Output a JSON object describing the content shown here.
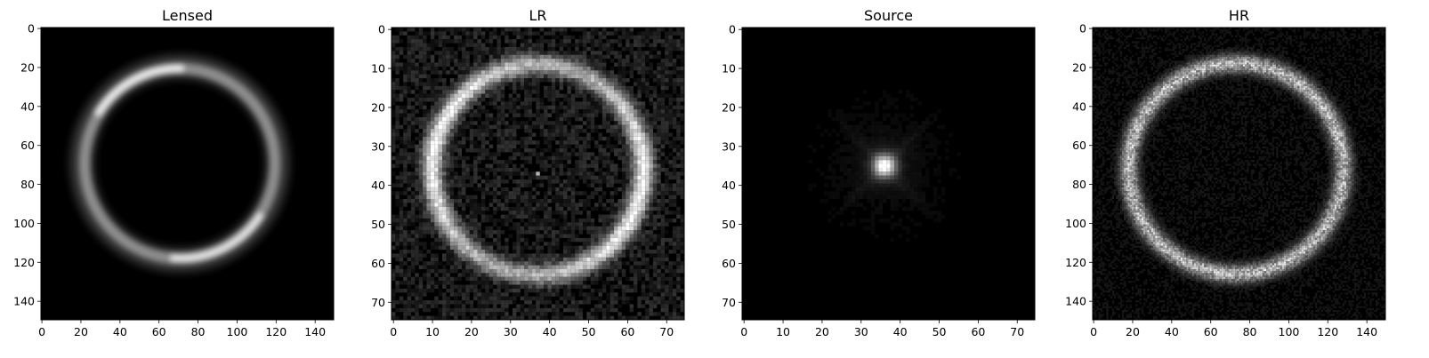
{
  "panels": [
    {
      "title": "Lensed",
      "xticks": [
        "0",
        "20",
        "40",
        "60",
        "80",
        "100",
        "120",
        "140"
      ],
      "yticks": [
        "0",
        "20",
        "40",
        "60",
        "80",
        "100",
        "120",
        "140"
      ],
      "range": [
        0,
        150
      ],
      "image": {
        "kind": "smooth-ring",
        "brightest_side": "upper-left and lower-right arcs"
      }
    },
    {
      "title": "LR",
      "xticks": [
        "0",
        "10",
        "20",
        "30",
        "40",
        "50",
        "60",
        "70"
      ],
      "yticks": [
        "0",
        "10",
        "20",
        "30",
        "40",
        "50",
        "60",
        "70"
      ],
      "range": [
        0,
        75
      ],
      "image": {
        "kind": "noisy-pixel-ring",
        "pixels": 75
      }
    },
    {
      "title": "Source",
      "xticks": [
        "0",
        "10",
        "20",
        "30",
        "40",
        "50",
        "60",
        "70"
      ],
      "yticks": [
        "0",
        "10",
        "20",
        "30",
        "40",
        "50",
        "60",
        "70"
      ],
      "range": [
        0,
        75
      ],
      "image": {
        "kind": "central-blob",
        "pixels": 75
      }
    },
    {
      "title": "HR",
      "xticks": [
        "0",
        "20",
        "40",
        "60",
        "80",
        "100",
        "120",
        "140"
      ],
      "yticks": [
        "0",
        "20",
        "40",
        "60",
        "80",
        "100",
        "120",
        "140"
      ],
      "range": [
        0,
        150
      ],
      "image": {
        "kind": "noisy-ring",
        "pixels": 150
      }
    }
  ],
  "colormap": "gray"
}
